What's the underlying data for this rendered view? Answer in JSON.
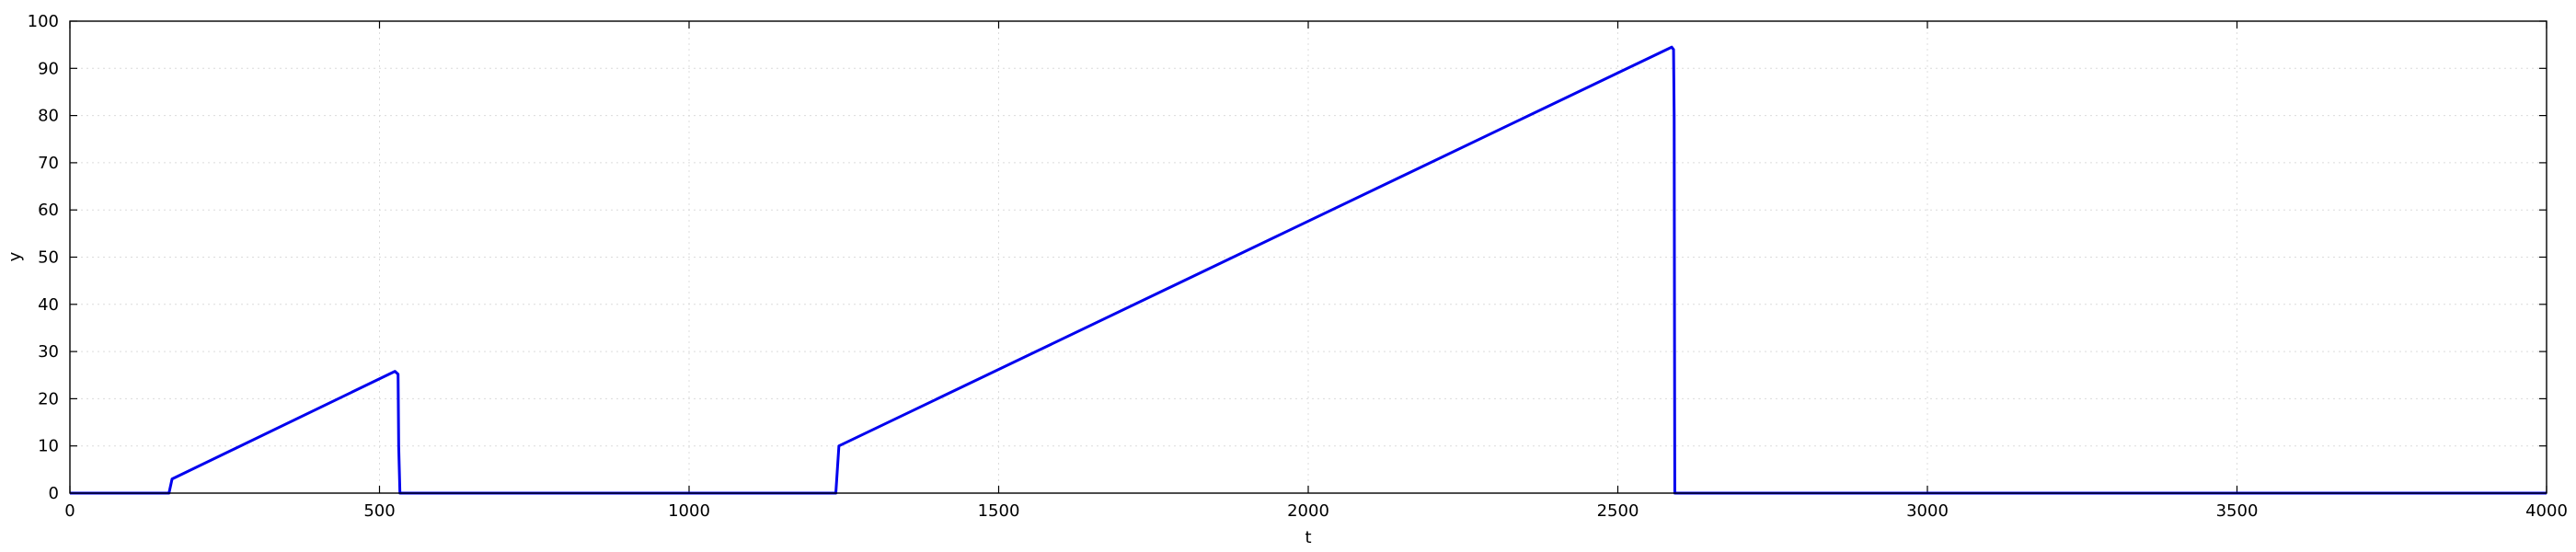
{
  "chart_data": {
    "type": "line",
    "title": "",
    "xlabel": "t",
    "ylabel": "y",
    "xlim": [
      0,
      4000
    ],
    "ylim": [
      0,
      100
    ],
    "x_ticks": [
      0,
      500,
      1000,
      1500,
      2000,
      2500,
      3000,
      3500,
      4000
    ],
    "y_ticks": [
      0,
      10,
      20,
      30,
      40,
      50,
      60,
      70,
      80,
      90,
      100
    ],
    "grid": true,
    "legend": "none",
    "series": [
      {
        "color": "#0000ee",
        "x": [
          0,
          160,
          165,
          525,
          530,
          531,
          533,
          536,
          1237,
          1242,
          2587,
          2590,
          2591,
          2592,
          4000
        ],
        "y": [
          0,
          0,
          3,
          25.8,
          25.2,
          10,
          0,
          0,
          0,
          10,
          94.5,
          94,
          80,
          0,
          0
        ]
      }
    ]
  }
}
